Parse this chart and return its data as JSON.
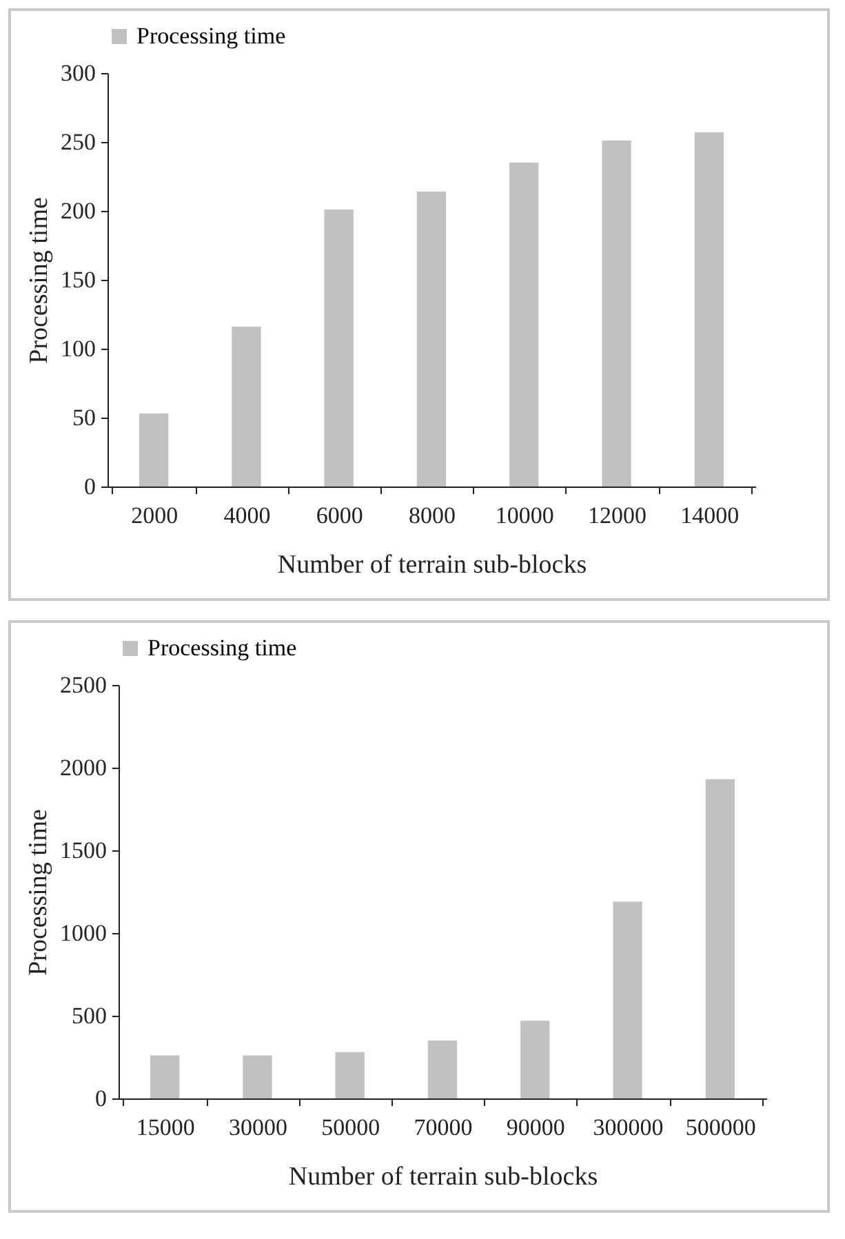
{
  "chart_data": [
    {
      "type": "bar",
      "xlabel": "Number of terrain sub-blocks",
      "ylabel": "Processing time",
      "categories": [
        "2000",
        "4000",
        "6000",
        "8000",
        "10000",
        "12000",
        "14000"
      ],
      "series": [
        {
          "name": "Processing time",
          "color": "#c0c0c2",
          "values": [
            53,
            116,
            201,
            214,
            235,
            251,
            257
          ]
        }
      ],
      "ylim": [
        0,
        300
      ],
      "yticks": [
        0,
        50,
        100,
        150,
        200,
        250,
        300
      ],
      "legend": "top",
      "grid": false
    },
    {
      "type": "bar",
      "xlabel": "Number of terrain sub-blocks",
      "ylabel": "Processing time",
      "categories": [
        "15000",
        "30000",
        "50000",
        "70000",
        "90000",
        "300000",
        "500000"
      ],
      "series": [
        {
          "name": "Processing time",
          "color": "#c0c0c2",
          "values": [
            260,
            260,
            280,
            350,
            470,
            1190,
            1930
          ]
        }
      ],
      "ylim": [
        0,
        2500
      ],
      "yticks": [
        0,
        500,
        1000,
        1500,
        2000,
        2500
      ],
      "legend": "top",
      "grid": false
    }
  ]
}
